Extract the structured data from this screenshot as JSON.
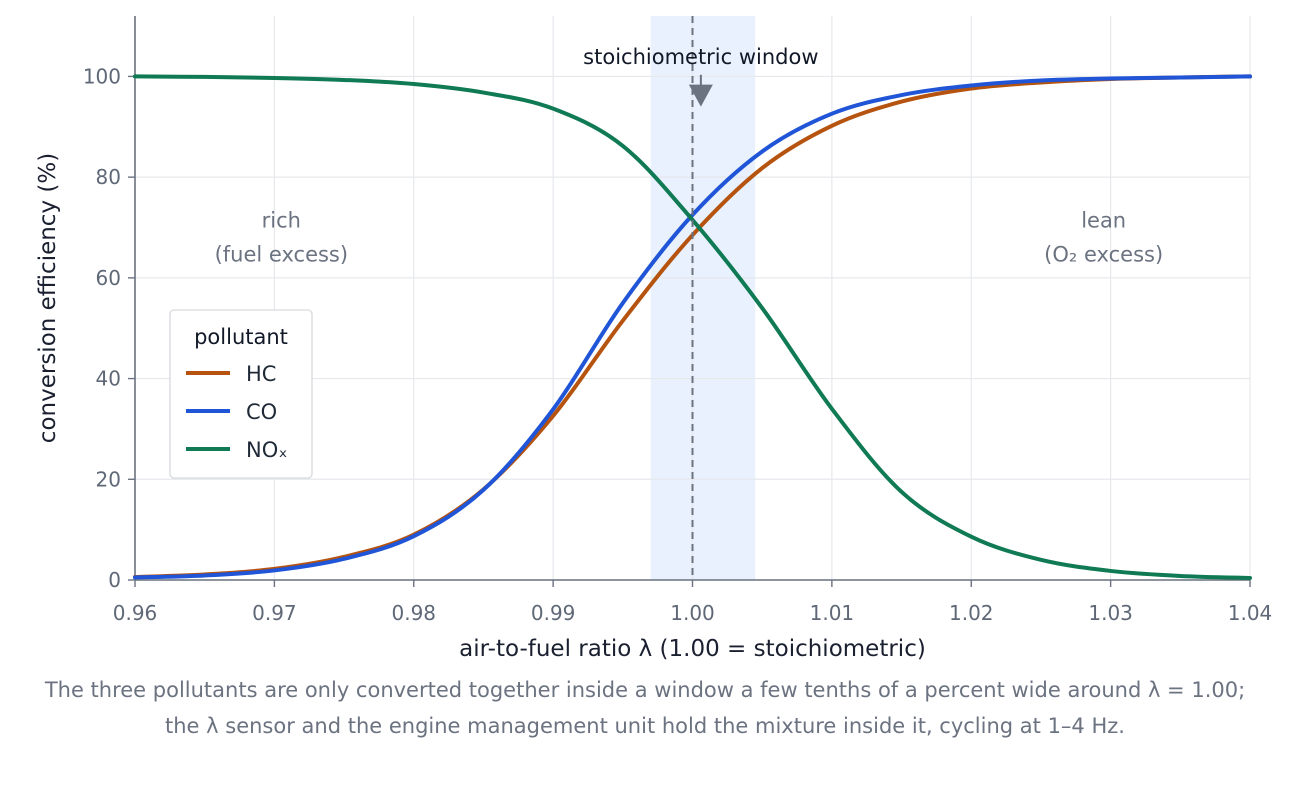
{
  "chart_data": {
    "type": "line",
    "xlabel": "air-to-fuel ratio λ (1.00 = stoichiometric)",
    "ylabel": "conversion efficiency (%)",
    "xlim": [
      0.96,
      1.04
    ],
    "ylim": [
      0,
      112
    ],
    "x_ticks": [
      0.96,
      0.97,
      0.98,
      0.99,
      1.0,
      1.01,
      1.02,
      1.03,
      1.04
    ],
    "x_tick_labels": [
      "0.96",
      "0.97",
      "0.98",
      "0.99",
      "1.00",
      "1.01",
      "1.02",
      "1.03",
      "1.04"
    ],
    "y_ticks": [
      0,
      20,
      40,
      60,
      80,
      100
    ],
    "y_tick_labels": [
      "0",
      "20",
      "40",
      "60",
      "80",
      "100"
    ],
    "grid": true,
    "legend": {
      "title": "pollutant",
      "placement": "center-left"
    },
    "series": [
      {
        "name": "HC",
        "color": "#b5530f",
        "x": [
          0.96,
          0.965,
          0.97,
          0.975,
          0.98,
          0.985,
          0.99,
          0.995,
          1.0,
          1.005,
          1.01,
          1.015,
          1.02,
          1.025,
          1.03,
          1.035,
          1.04
        ],
        "y": [
          0.6,
          1.1,
          2.2,
          4.6,
          9.0,
          18.0,
          32.6,
          51.5,
          68.5,
          81.8,
          90.2,
          95.0,
          97.6,
          98.8,
          99.5,
          99.8,
          100.0
        ]
      },
      {
        "name": "CO",
        "color": "#1f55d6",
        "x": [
          0.96,
          0.965,
          0.97,
          0.975,
          0.98,
          0.985,
          0.99,
          0.995,
          1.0,
          1.005,
          1.01,
          1.015,
          1.02,
          1.025,
          1.03,
          1.035,
          1.04
        ],
        "y": [
          0.5,
          0.9,
          1.9,
          4.2,
          8.7,
          17.9,
          33.9,
          55.0,
          72.5,
          85.1,
          92.6,
          96.3,
          98.2,
          99.2,
          99.6,
          99.8,
          100.0
        ]
      },
      {
        "name": "NOₓ",
        "color": "#0f7a53",
        "x": [
          0.96,
          0.965,
          0.97,
          0.975,
          0.98,
          0.985,
          0.99,
          0.995,
          1.0,
          1.005,
          1.01,
          1.015,
          1.02,
          1.025,
          1.03,
          1.035,
          1.04
        ],
        "y": [
          100.0,
          99.9,
          99.7,
          99.3,
          98.5,
          96.8,
          93.6,
          86.2,
          71.5,
          54.0,
          34.0,
          17.5,
          8.6,
          4.0,
          1.8,
          0.8,
          0.4
        ]
      }
    ],
    "shaded_band": {
      "x0": 0.997,
      "x1": 1.0045,
      "color": "#e8f1fd"
    },
    "vline": {
      "x": 1.0,
      "color": "#6b7280",
      "style": "dashed"
    },
    "annotations": [
      {
        "text": "stoichiometric window",
        "x": 1.0006,
        "y": 103.5,
        "arrow_to": [
          1.0006,
          94
        ]
      }
    ],
    "region_labels": [
      {
        "lines": [
          "rich",
          "(fuel excess)"
        ],
        "x": 0.9705,
        "y": 70
      },
      {
        "lines": [
          "lean",
          "(O₂ excess)"
        ],
        "x": 1.0295,
        "y": 70
      }
    ]
  },
  "caption": "The three pollutants are only converted together inside a window a few tenths of a percent wide around λ = 1.00; the λ sensor and the engine management unit hold the mixture inside it, cycling at 1–4 Hz."
}
